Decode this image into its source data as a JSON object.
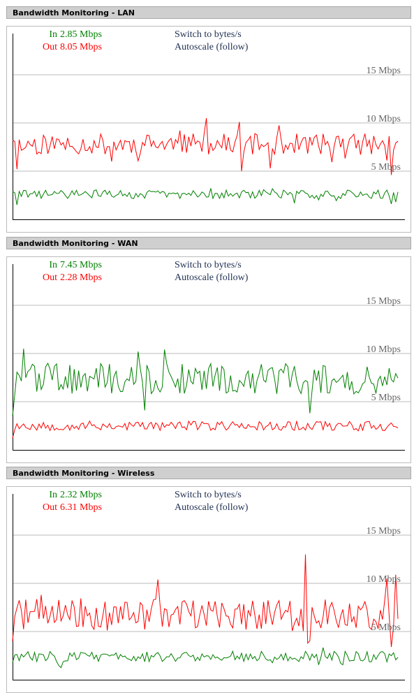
{
  "common": {
    "switch_label": "Switch to bytes/s",
    "autoscale_label": "Autoscale (follow)",
    "in_label": "In",
    "out_label": "Out",
    "colors": {
      "in": "#008000",
      "out": "#ff0000",
      "grid": "#bbbbbb",
      "axis": "#000000"
    }
  },
  "panels": [
    {
      "title": "Bandwidth Monitoring - LAN",
      "in_value": "2.85 Mbps",
      "out_value": "8.05 Mbps",
      "chart_data": {
        "type": "line",
        "yticks": [
          {
            "value": 15,
            "label": "15 Mbps"
          },
          {
            "value": 10,
            "label": "10 Mbps"
          },
          {
            "value": 5,
            "label": "5 Mbps"
          }
        ],
        "ylim": [
          0,
          18
        ],
        "series": [
          {
            "name": "Out",
            "key": "out",
            "baseline": 7.8,
            "amp": 1.1,
            "seed": 11,
            "spikes": [
              [
                0,
                8.2
              ],
              [
                2,
                5.2
              ],
              [
                45,
                6.0
              ],
              [
                88,
                10.5
              ],
              [
                100,
                7.0
              ],
              [
                103,
                10.1
              ],
              [
                104,
                5.0
              ],
              [
                117,
                5.3
              ],
              [
                170,
                6.1
              ],
              [
                172,
                4.6
              ],
              [
                175,
                8.1
              ]
            ]
          },
          {
            "name": "In",
            "key": "in",
            "baseline": 2.6,
            "amp": 0.45,
            "seed": 29,
            "spikes": [
              [
                0,
                2.9
              ],
              [
                2,
                1.5
              ],
              [
                172,
                1.6
              ],
              [
                175,
                2.85
              ]
            ]
          }
        ]
      }
    },
    {
      "title": "Bandwidth Monitoring - WAN",
      "in_value": "7.45 Mbps",
      "out_value": "2.28 Mbps",
      "chart_data": {
        "type": "line",
        "yticks": [
          {
            "value": 15,
            "label": "15 Mbps"
          },
          {
            "value": 10,
            "label": "10 Mbps"
          },
          {
            "value": 5,
            "label": "5 Mbps"
          }
        ],
        "ylim": [
          0,
          18
        ],
        "series": [
          {
            "name": "In",
            "key": "in",
            "baseline": 7.4,
            "amp": 1.6,
            "seed": 47,
            "spikes": [
              [
                0,
                3.5
              ],
              [
                5,
                10.5
              ],
              [
                57,
                10.2
              ],
              [
                60,
                4.1
              ],
              [
                135,
                3.8
              ],
              [
                175,
                7.45
              ]
            ]
          },
          {
            "name": "Out",
            "key": "out",
            "baseline": 2.5,
            "amp": 0.5,
            "seed": 53,
            "spikes": [
              [
                0,
                1.2
              ],
              [
                175,
                2.28
              ]
            ]
          }
        ]
      }
    },
    {
      "title": "Bandwidth Monitoring - Wireless",
      "in_value": "2.32 Mbps",
      "out_value": "6.31 Mbps",
      "chart_data": {
        "type": "line",
        "yticks": [
          {
            "value": 15,
            "label": "15 Mbps"
          },
          {
            "value": 10,
            "label": "10 Mbps"
          },
          {
            "value": 5,
            "label": "5 Mbps"
          }
        ],
        "ylim": [
          0,
          18
        ],
        "series": [
          {
            "name": "Out",
            "key": "out",
            "baseline": 6.8,
            "amp": 1.6,
            "seed": 71,
            "spikes": [
              [
                0,
                4.0
              ],
              [
                66,
                10.4
              ],
              [
                133,
                13.0
              ],
              [
                134,
                3.8
              ],
              [
                170,
                10.5
              ],
              [
                172,
                3.4
              ],
              [
                174,
                10.9
              ],
              [
                175,
                6.31
              ]
            ]
          },
          {
            "name": "In",
            "key": "in",
            "baseline": 2.4,
            "amp": 0.55,
            "seed": 83,
            "spikes": [
              [
                0,
                1.8
              ],
              [
                175,
                2.32
              ]
            ]
          }
        ]
      }
    }
  ]
}
